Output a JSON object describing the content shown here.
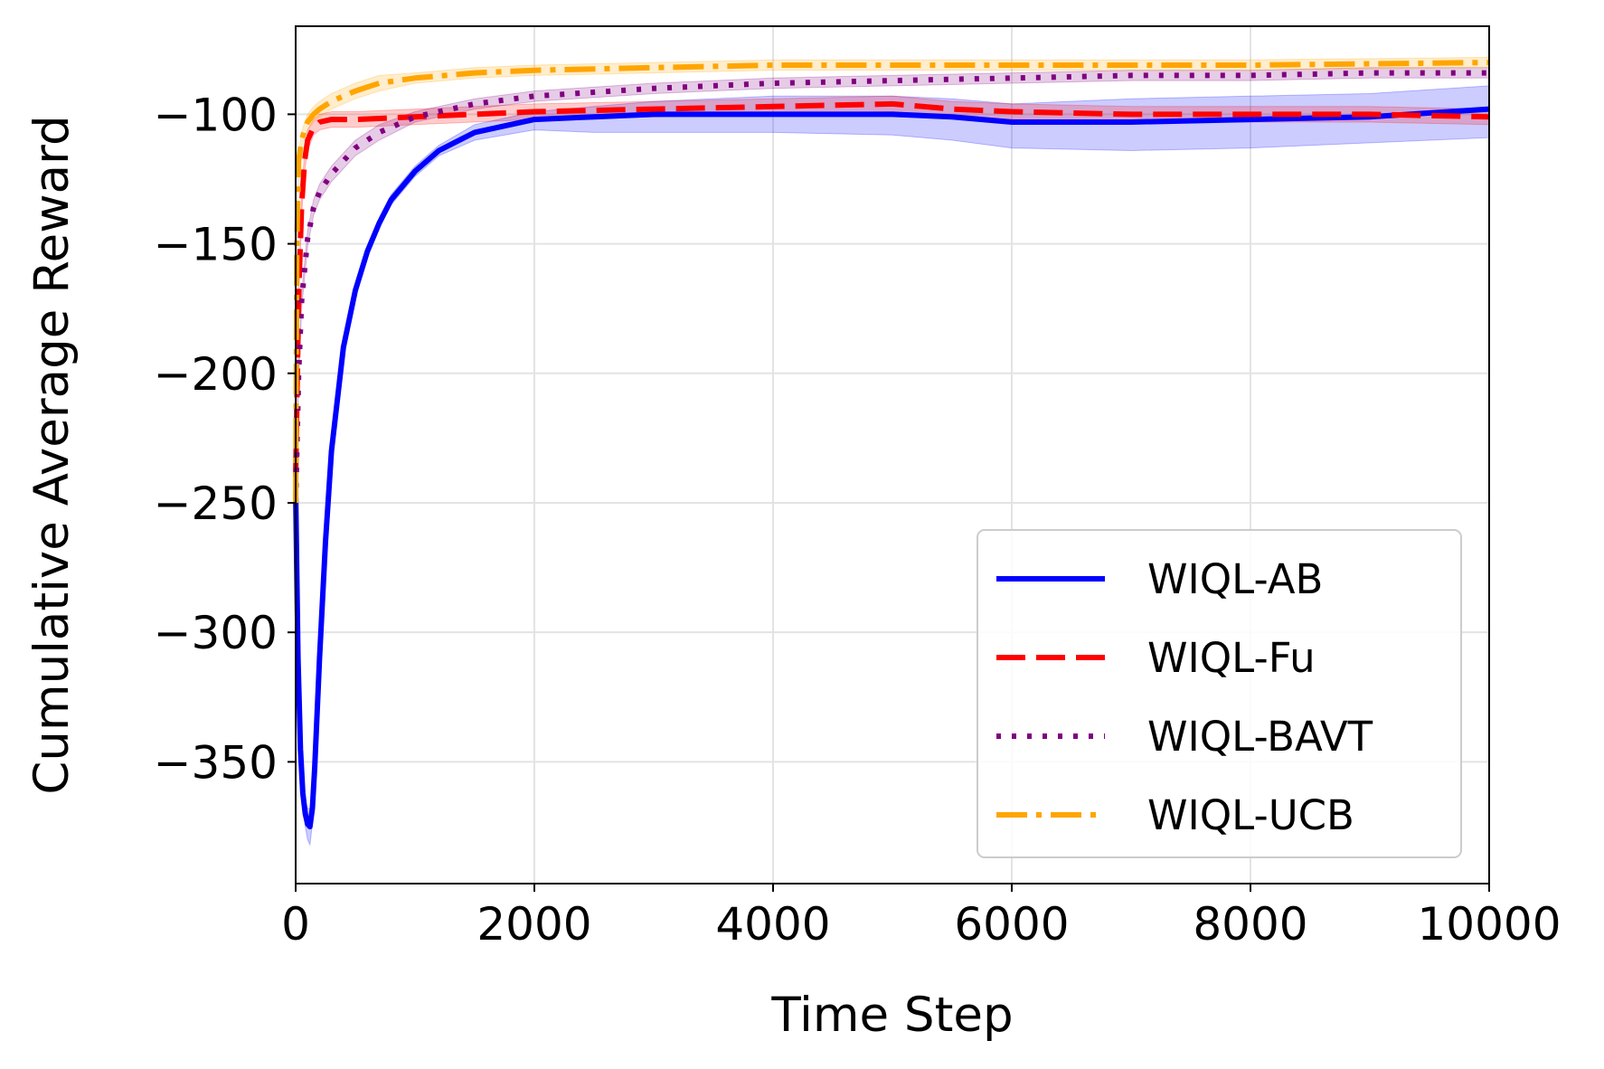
{
  "chart_data": {
    "type": "line",
    "title": "",
    "xlabel": "Time Step",
    "ylabel": "Cumulative Average Reward",
    "xlim": [
      0,
      10000
    ],
    "ylim": [
      -397,
      -66
    ],
    "xticks": [
      0,
      2000,
      4000,
      6000,
      8000,
      10000
    ],
    "xtick_labels": [
      "0",
      "2000",
      "4000",
      "6000",
      "8000",
      "10000"
    ],
    "yticks": [
      -350,
      -300,
      -250,
      -200,
      -150,
      -100
    ],
    "ytick_labels": [
      "−350",
      "−300",
      "−250",
      "−200",
      "−150",
      "−100"
    ],
    "grid": true,
    "legend_position": "lower-right",
    "series": [
      {
        "name": "WIQL-AB",
        "color": "#0000ff",
        "style": "solid",
        "x": [
          0,
          20,
          40,
          60,
          80,
          100,
          120,
          140,
          160,
          200,
          250,
          300,
          400,
          500,
          600,
          700,
          800,
          1000,
          1200,
          1500,
          2000,
          2500,
          3000,
          4000,
          5000,
          5500,
          6000,
          7000,
          8000,
          9000,
          10000
        ],
        "y": [
          -246,
          -310,
          -345,
          -362,
          -370,
          -374,
          -375,
          -368,
          -352,
          -310,
          -265,
          -230,
          -190,
          -168,
          -153,
          -142,
          -133,
          -122,
          -114,
          -107,
          -102,
          -101,
          -100,
          -100,
          -100,
          -101,
          -103,
          -103,
          -102,
          -101,
          -98
        ],
        "band_low": [
          -246,
          -312,
          -348,
          -366,
          -375,
          -380,
          -382,
          -374,
          -357,
          -314,
          -268,
          -233,
          -192,
          -170,
          -155,
          -144,
          -135,
          -124,
          -116,
          -110,
          -106,
          -107,
          -107,
          -107,
          -108,
          -110,
          -113,
          -114,
          -113,
          -111,
          -109
        ],
        "band_high": [
          -246,
          -308,
          -342,
          -358,
          -365,
          -368,
          -368,
          -362,
          -347,
          -306,
          -262,
          -227,
          -188,
          -166,
          -151,
          -140,
          -131,
          -120,
          -112,
          -104,
          -99,
          -97,
          -95,
          -93,
          -93,
          -94,
          -96,
          -94,
          -93,
          -92,
          -89
        ]
      },
      {
        "name": "WIQL-Fu",
        "color": "#ff0000",
        "style": "dashed",
        "x": [
          0,
          25,
          50,
          75,
          100,
          150,
          200,
          300,
          500,
          1000,
          2000,
          3000,
          4000,
          5000,
          5500,
          6000,
          7000,
          8000,
          9000,
          10000
        ],
        "y": [
          -240,
          -170,
          -135,
          -118,
          -110,
          -105,
          -103,
          -102,
          -102,
          -101,
          -99,
          -98,
          -97,
          -96,
          -98,
          -99,
          -100,
          -100,
          -100,
          -101
        ],
        "band_low": [
          -240,
          -173,
          -139,
          -122,
          -114,
          -108,
          -106,
          -105,
          -105,
          -104,
          -102,
          -101,
          -100,
          -99,
          -101,
          -102,
          -103,
          -103,
          -103,
          -104
        ],
        "band_high": [
          -240,
          -167,
          -131,
          -114,
          -106,
          -102,
          -100,
          -99,
          -99,
          -98,
          -96,
          -95,
          -94,
          -93,
          -95,
          -96,
          -97,
          -97,
          -97,
          -98
        ]
      },
      {
        "name": "WIQL-BAVT",
        "color": "#800080",
        "style": "dotted",
        "x": [
          0,
          25,
          50,
          100,
          150,
          200,
          300,
          400,
          500,
          700,
          1000,
          1500,
          2000,
          3000,
          4000,
          5000,
          6000,
          7000,
          8000,
          9000,
          10000
        ],
        "y": [
          -250,
          -200,
          -172,
          -148,
          -136,
          -130,
          -123,
          -118,
          -113,
          -107,
          -101,
          -96,
          -93,
          -90,
          -88,
          -87,
          -86,
          -85,
          -85,
          -84,
          -84
        ],
        "band_low": [
          -250,
          -203,
          -175,
          -151,
          -139,
          -133,
          -126,
          -121,
          -116,
          -110,
          -103,
          -98,
          -95,
          -92,
          -90,
          -89,
          -88,
          -87,
          -87,
          -86,
          -86
        ],
        "band_high": [
          -250,
          -197,
          -169,
          -145,
          -133,
          -127,
          -120,
          -115,
          -110,
          -104,
          -99,
          -94,
          -91,
          -88,
          -86,
          -85,
          -84,
          -83,
          -83,
          -82,
          -82
        ]
      },
      {
        "name": "WIQL-UCB",
        "color": "#ffa500",
        "style": "dashdot",
        "x": [
          0,
          10,
          25,
          50,
          75,
          100,
          150,
          200,
          300,
          400,
          500,
          700,
          1000,
          1500,
          2000,
          3000,
          4000,
          6000,
          8000,
          10000
        ],
        "y": [
          -250,
          -150,
          -118,
          -110,
          -106,
          -103,
          -100,
          -98,
          -95,
          -93,
          -91,
          -88,
          -86,
          -84,
          -83,
          -82,
          -81,
          -81,
          -81,
          -80
        ],
        "band_low": [
          -250,
          -153,
          -121,
          -113,
          -109,
          -106,
          -103,
          -101,
          -98,
          -96,
          -94,
          -91,
          -88,
          -86,
          -85,
          -84,
          -83,
          -83,
          -83,
          -82
        ],
        "band_high": [
          -250,
          -147,
          -115,
          -107,
          -103,
          -100,
          -97,
          -95,
          -92,
          -90,
          -88,
          -85,
          -84,
          -82,
          -81,
          -80,
          -79,
          -79,
          -79,
          -78
        ]
      }
    ]
  }
}
